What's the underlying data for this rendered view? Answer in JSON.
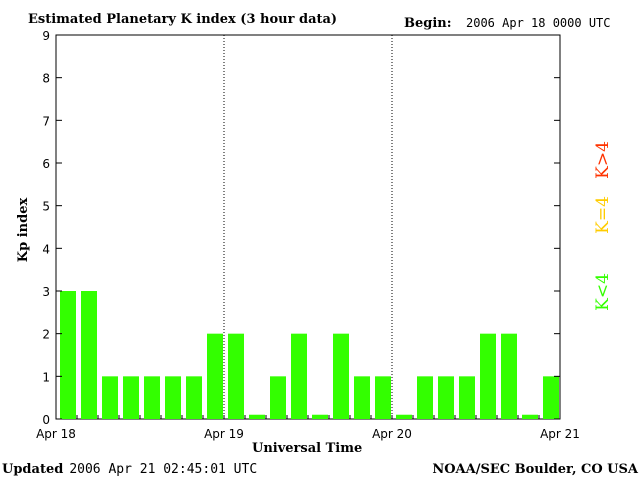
{
  "header": {
    "title": "Estimated Planetary K index (3 hour data)",
    "begin_label": "Begin:",
    "begin_value": "2006 Apr 18 0000 UTC"
  },
  "footer": {
    "updated_label": "Updated",
    "updated_value": "2006 Apr 21 02:45:01 UTC",
    "source": "NOAA/SEC Boulder, CO USA"
  },
  "legend": [
    {
      "label": "K>4",
      "color": "#ff3300"
    },
    {
      "label": "K=4",
      "color": "#ffcc00"
    },
    {
      "label": "K<4",
      "color": "#33ff00"
    }
  ],
  "chart_data": {
    "type": "bar",
    "title": "Estimated Planetary K index (3 hour data)",
    "xlabel": "Universal Time",
    "ylabel": "Kp index",
    "ylim": [
      0,
      9
    ],
    "yticks": [
      0,
      1,
      2,
      3,
      4,
      5,
      6,
      7,
      8,
      9
    ],
    "xtick_labels": [
      "Apr 18",
      "Apr 19",
      "Apr 20",
      "Apr 21"
    ],
    "interval_hours": 3,
    "day_dividers": true,
    "bar_color": "#33ff00",
    "values": [
      3,
      3,
      1,
      1,
      1,
      1,
      1,
      2,
      2,
      0.1,
      1,
      2,
      0.1,
      2,
      1,
      1,
      0.1,
      1,
      1,
      1,
      2,
      2,
      0.1,
      1
    ]
  }
}
